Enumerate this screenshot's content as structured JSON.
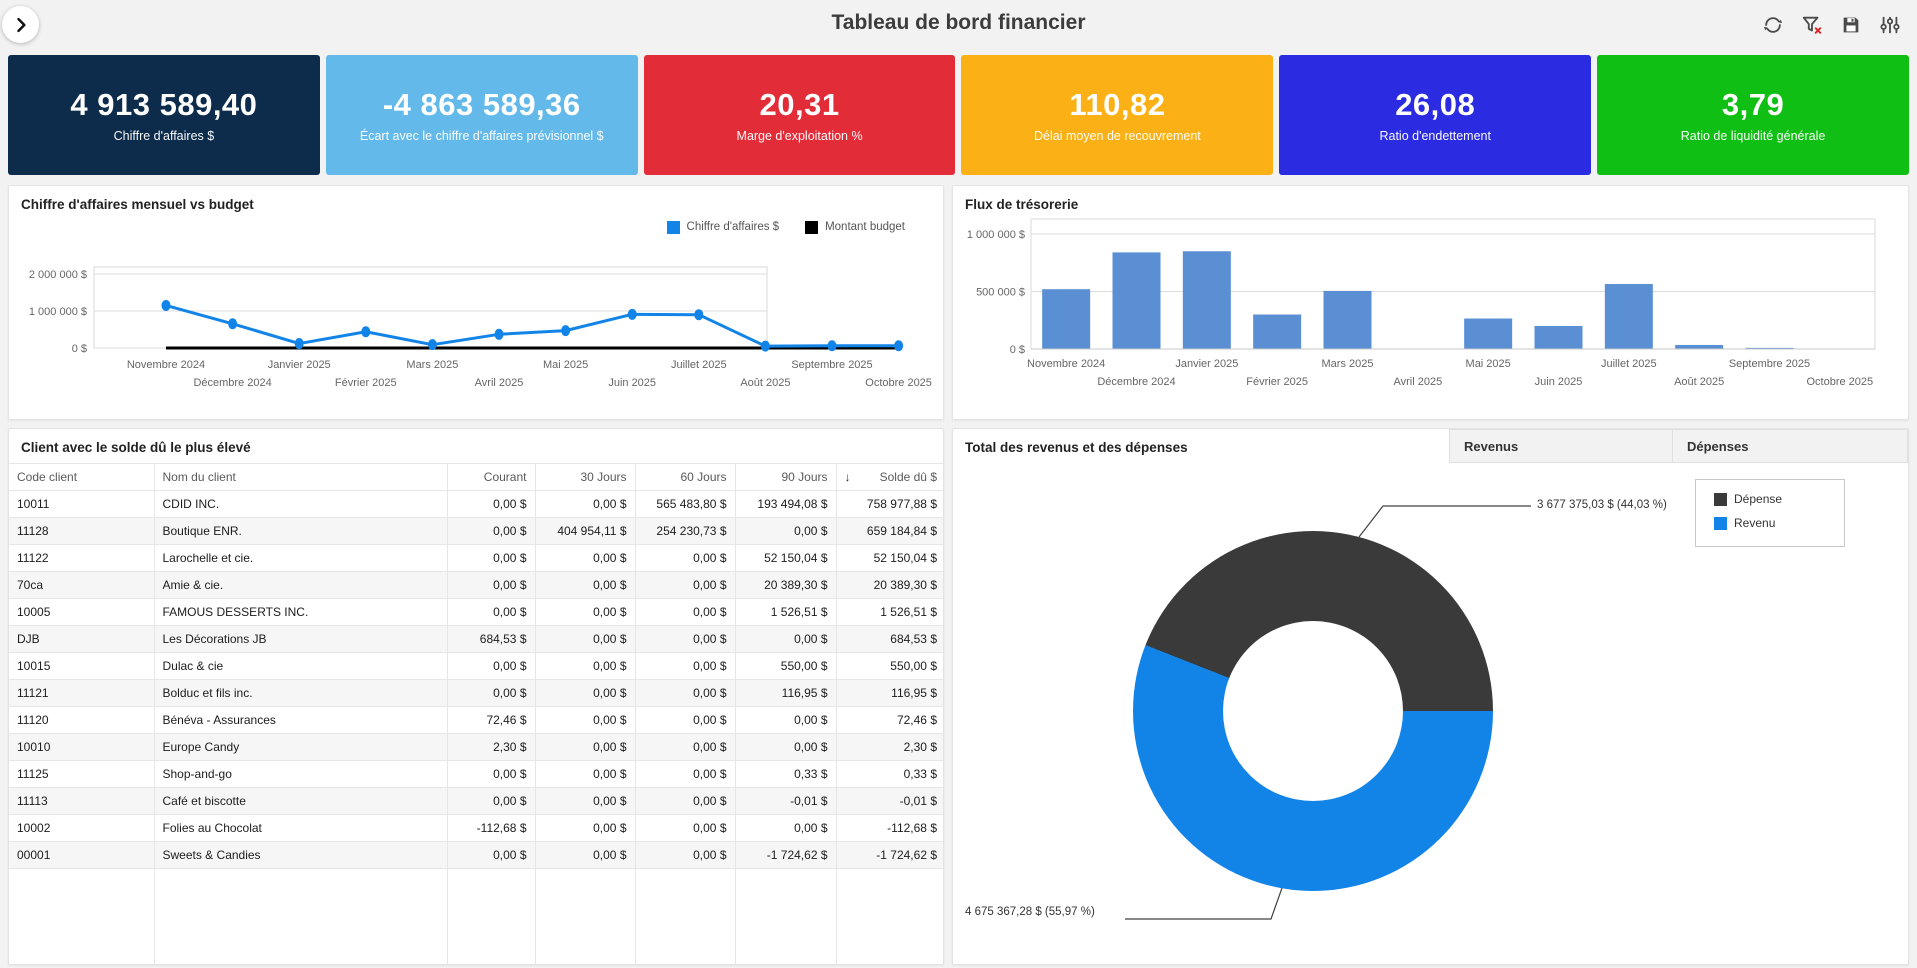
{
  "header": {
    "title": "Tableau de bord financier",
    "toolbar_icons": [
      "refresh",
      "clear-filter",
      "save",
      "filter-settings"
    ],
    "expand_icon": "chevron-right"
  },
  "kpis": [
    {
      "value": "4 913 589,40",
      "label": "Chiffre d'affaires $",
      "color": "#0D2B4B"
    },
    {
      "value": "-4 863 589,36",
      "label": "Écart avec le chiffre d'affaires prévisionnel $",
      "color": "#62B9EA"
    },
    {
      "value": "20,31",
      "label": "Marge d'exploitation %",
      "color": "#E22C38"
    },
    {
      "value": "110,82",
      "label": "Délai moyen de recouvrement",
      "color": "#FBB116"
    },
    {
      "value": "26,08",
      "label": "Ratio d'endettement",
      "color": "#2B2BE2"
    },
    {
      "value": "3,79",
      "label": "Ratio de liquidité générale",
      "color": "#0FBF13"
    }
  ],
  "chart_data": [
    {
      "id": "revenue_vs_budget",
      "type": "line",
      "title": "Chiffre d'affaires mensuel vs budget",
      "categories": [
        "Novembre 2024",
        "Décembre 2024",
        "Janvier 2025",
        "Février 2025",
        "Mars 2025",
        "Avril 2025",
        "Mai 2025",
        "Juin 2025",
        "Juillet 2025",
        "Août 2025",
        "Septembre 2025",
        "Octobre 2025"
      ],
      "series": [
        {
          "name": "Chiffre d'affaires $",
          "color": "#1284E8",
          "values": [
            1150000,
            655000,
            120000,
            440000,
            90000,
            370000,
            470000,
            910000,
            900000,
            50000,
            60000,
            60000
          ]
        },
        {
          "name": "Montant budget",
          "color": "#000000",
          "values": [
            0,
            0,
            0,
            0,
            0,
            0,
            0,
            0,
            0,
            0,
            0,
            0
          ]
        }
      ],
      "ylim": [
        0,
        2000000
      ],
      "yticks": [
        {
          "value": 2000000,
          "label": "2 000 000 $"
        },
        {
          "value": 1000000,
          "label": "1 000 000 $"
        },
        {
          "value": 0,
          "label": "0 $"
        }
      ],
      "legend_position": "top-right",
      "grid": true
    },
    {
      "id": "cash_flow",
      "type": "bar",
      "title": "Flux de trésorerie",
      "categories": [
        "Novembre 2024",
        "Décembre 2024",
        "Janvier 2025",
        "Février 2025",
        "Mars 2025",
        "Avril 2025",
        "Mai 2025",
        "Juin 2025",
        "Juillet 2025",
        "Août 2025",
        "Septembre 2025",
        "Octobre 2025"
      ],
      "values": [
        520000,
        840000,
        850000,
        300000,
        505000,
        0,
        265000,
        200000,
        565000,
        35000,
        10000,
        0
      ],
      "color": "#5B8FD4",
      "ylim": [
        0,
        1000000
      ],
      "yticks": [
        {
          "value": 1000000,
          "label": "1 000 000 $"
        },
        {
          "value": 500000,
          "label": "500 000 $"
        },
        {
          "value": 0,
          "label": "0 $"
        }
      ],
      "grid": true,
      "legend_position": "none"
    },
    {
      "id": "revenue_expenses_donut",
      "type": "pie",
      "title": "Total des revenus et des dépenses",
      "slices": [
        {
          "name": "Dépense",
          "value": 3677375.03,
          "pct": 44.03,
          "color": "#3A3A3A",
          "label": "3 677 375,03 $ (44,03 %)"
        },
        {
          "name": "Revenu",
          "value": 4675367.28,
          "pct": 55.97,
          "color": "#1284E8",
          "label": "4 675 367,28 $ (55,97 %)"
        }
      ],
      "donut_hole_pct": 50,
      "legend_position": "right"
    }
  ],
  "table": {
    "title": "Client avec le solde dû le plus élevé",
    "columns": [
      "Code client",
      "Nom du client",
      "Courant",
      "30 Jours",
      "60 Jours",
      "90 Jours",
      "Solde dû $"
    ],
    "sort_column": "Solde dû $",
    "sort_direction": "desc",
    "sort_icon": "↓",
    "rows": [
      [
        "10011",
        "CDID INC.",
        "0,00 $",
        "0,00 $",
        "565 483,80 $",
        "193 494,08 $",
        "758 977,88 $"
      ],
      [
        "11128",
        "Boutique ENR.",
        "0,00 $",
        "404 954,11 $",
        "254 230,73 $",
        "0,00 $",
        "659 184,84 $"
      ],
      [
        "11122",
        "Larochelle et cie.",
        "0,00 $",
        "0,00 $",
        "0,00 $",
        "52 150,04 $",
        "52 150,04 $"
      ],
      [
        "70ca",
        "Amie & cie.",
        "0,00 $",
        "0,00 $",
        "0,00 $",
        "20 389,30 $",
        "20 389,30 $"
      ],
      [
        "10005",
        "FAMOUS DESSERTS INC.",
        "0,00 $",
        "0,00 $",
        "0,00 $",
        "1 526,51 $",
        "1 526,51 $"
      ],
      [
        "DJB",
        "Les Décorations JB",
        "684,53 $",
        "0,00 $",
        "0,00 $",
        "0,00 $",
        "684,53 $"
      ],
      [
        "10015",
        "Dulac & cie",
        "0,00 $",
        "0,00 $",
        "0,00 $",
        "550,00 $",
        "550,00 $"
      ],
      [
        "11121",
        "Bolduc et fils inc.",
        "0,00 $",
        "0,00 $",
        "0,00 $",
        "116,95 $",
        "116,95 $"
      ],
      [
        "11120",
        "Bénéva - Assurances",
        "72,46 $",
        "0,00 $",
        "0,00 $",
        "0,00 $",
        "72,46 $"
      ],
      [
        "10010",
        "Europe Candy",
        "2,30 $",
        "0,00 $",
        "0,00 $",
        "0,00 $",
        "2,30 $"
      ],
      [
        "11125",
        "Shop-and-go",
        "0,00 $",
        "0,00 $",
        "0,00 $",
        "0,33 $",
        "0,33 $"
      ],
      [
        "11113",
        "Café et biscotte",
        "0,00 $",
        "0,00 $",
        "0,00 $",
        "-0,01 $",
        "-0,01 $"
      ],
      [
        "10002",
        "Folies au Chocolat",
        "-112,68 $",
        "0,00 $",
        "0,00 $",
        "0,00 $",
        "-112,68 $"
      ],
      [
        "00001",
        "Sweets & Candies",
        "0,00 $",
        "0,00 $",
        "0,00 $",
        "-1 724,62 $",
        "-1 724,62 $"
      ]
    ]
  },
  "donut_panel": {
    "title": "Total des revenus et des dépenses",
    "tabs": [
      "Revenus",
      "Dépenses"
    ],
    "legend": [
      {
        "label": "Dépense",
        "color": "#3A3A3A"
      },
      {
        "label": "Revenu",
        "color": "#1284E8"
      }
    ]
  }
}
